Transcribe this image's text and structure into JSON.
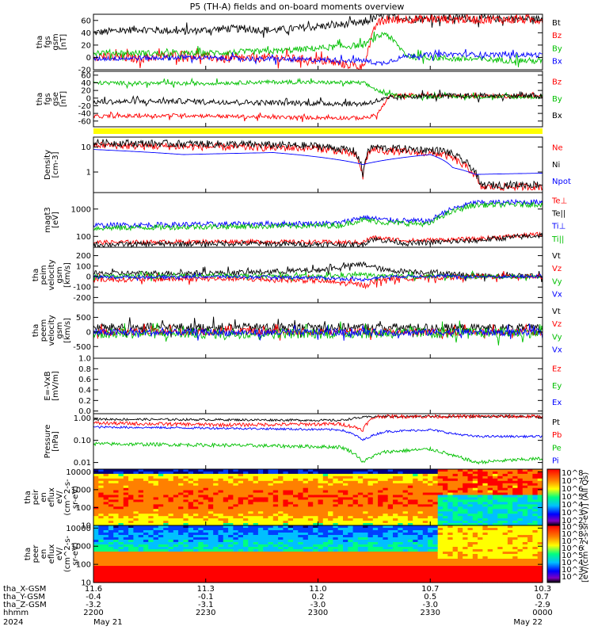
{
  "title": "P5 (TH-A) fields and on-board moments overview",
  "chart_data": [
    {
      "id": "fgs_gsm",
      "type": "line",
      "ylabel": [
        "tha",
        "fgs",
        "gsm",
        "[nT]"
      ],
      "ylim": [
        -20,
        70
      ],
      "yticks": [
        {
          "v": 60,
          "t": "60"
        },
        {
          "v": 40,
          "t": "40"
        },
        {
          "v": 20,
          "t": "20"
        },
        {
          "v": 0,
          "t": "0"
        },
        {
          "v": -20,
          "t": "-20"
        }
      ],
      "series": [
        {
          "name": "Bt",
          "color": "#000000",
          "x": [
            0,
            0.1,
            0.2,
            0.3,
            0.4,
            0.5,
            0.6,
            0.65,
            0.7,
            0.8,
            0.9,
            1
          ],
          "y": [
            40,
            46,
            42,
            47,
            44,
            50,
            56,
            70,
            62,
            64,
            63,
            62
          ],
          "noise": 6
        },
        {
          "name": "Bz",
          "color": "#ff0000",
          "x": [
            0,
            0.1,
            0.2,
            0.3,
            0.4,
            0.5,
            0.6,
            0.63,
            0.65,
            0.7,
            0.8,
            1
          ],
          "y": [
            2,
            -2,
            5,
            -3,
            0,
            -5,
            -15,
            55,
            60,
            62,
            62,
            61
          ],
          "noise": 7
        },
        {
          "name": "By",
          "color": "#00c000",
          "x": [
            0,
            0.2,
            0.4,
            0.6,
            0.65,
            0.7,
            0.8,
            0.9,
            1
          ],
          "y": [
            8,
            6,
            10,
            20,
            40,
            2,
            -2,
            -4,
            -6
          ],
          "noise": 5
        },
        {
          "name": "Bx",
          "color": "#0000ff",
          "x": [
            0,
            0.2,
            0.4,
            0.6,
            0.64,
            0.7,
            0.8,
            1
          ],
          "y": [
            -2,
            0,
            -3,
            -5,
            -10,
            3,
            5,
            4
          ],
          "noise": 4
        }
      ]
    },
    {
      "id": "fgs_gse",
      "type": "line",
      "ylabel": [
        "tha",
        "fgs",
        "gse",
        "[nT]"
      ],
      "ylim": [
        -75,
        70
      ],
      "yticks": [
        {
          "v": 60,
          "t": "60"
        },
        {
          "v": 40,
          "t": "40"
        },
        {
          "v": 20,
          "t": "20"
        },
        {
          "v": 0,
          "t": "0"
        },
        {
          "v": -20,
          "t": "-20"
        },
        {
          "v": -40,
          "t": "-40"
        },
        {
          "v": -60,
          "t": "-60"
        }
      ],
      "series": [
        {
          "name": "Bz",
          "color": "#ff0000",
          "x": [
            0,
            0.2,
            0.4,
            0.6,
            0.63,
            0.66,
            0.7,
            0.8,
            1
          ],
          "y": [
            -48,
            -45,
            -50,
            -52,
            -45,
            5,
            8,
            6,
            5
          ],
          "noise": 5
        },
        {
          "name": "By",
          "color": "#00c000",
          "x": [
            0,
            0.2,
            0.4,
            0.6,
            0.65,
            0.7,
            0.8,
            1
          ],
          "y": [
            40,
            38,
            42,
            40,
            10,
            5,
            4,
            3
          ],
          "noise": 5
        },
        {
          "name": "Bx",
          "color": "#000000",
          "x": [
            0,
            0.2,
            0.4,
            0.6,
            0.64,
            0.7,
            0.8,
            1
          ],
          "y": [
            -10,
            -8,
            -12,
            -15,
            -5,
            5,
            6,
            6
          ],
          "noise": 7
        }
      ]
    },
    {
      "id": "density",
      "type": "line",
      "log": true,
      "ylabel": [
        "Density",
        "[cm-3]"
      ],
      "ylim": [
        0.15,
        25
      ],
      "yticks": [
        {
          "v": 10,
          "t": "10"
        },
        {
          "v": 1,
          "t": "1"
        }
      ],
      "series": [
        {
          "name": "Ne",
          "color": "#ff0000",
          "x": [
            0,
            0.1,
            0.3,
            0.5,
            0.58,
            0.6,
            0.62,
            0.65,
            0.72,
            0.78,
            0.82,
            0.86,
            0.9,
            1
          ],
          "y": [
            12,
            11,
            10,
            9,
            5,
            0.5,
            8,
            7,
            6,
            5,
            2,
            0.25,
            0.25,
            0.26
          ],
          "noise": 0.15
        },
        {
          "name": "Ni",
          "color": "#000000",
          "x": [
            0,
            0.1,
            0.3,
            0.5,
            0.58,
            0.6,
            0.62,
            0.65,
            0.72,
            0.78,
            0.82,
            0.86,
            0.9,
            1
          ],
          "y": [
            15,
            14,
            13,
            11,
            7,
            0.6,
            10,
            9,
            8,
            7,
            3,
            0.3,
            0.3,
            0.32
          ],
          "noise": 0.15
        },
        {
          "name": "Npot",
          "color": "#0000ff",
          "x": [
            0,
            0.2,
            0.4,
            0.55,
            0.6,
            0.7,
            0.75,
            0.8,
            0.85,
            1
          ],
          "y": [
            8,
            5,
            6,
            3,
            2,
            4,
            5,
            1.5,
            0.8,
            0.9
          ],
          "noise": 0
        }
      ]
    },
    {
      "id": "temp",
      "type": "line",
      "log": true,
      "ylabel": [
        "magt3",
        "[eV]"
      ],
      "ylim": [
        40,
        4000
      ],
      "yticks": [
        {
          "v": 1000,
          "t": "1000"
        },
        {
          "v": 100,
          "t": "100"
        }
      ],
      "series": [
        {
          "name": "Te⊥",
          "color": "#ff0000",
          "x": [
            0,
            0.3,
            0.6,
            0.62,
            0.7,
            0.85,
            1
          ],
          "y": [
            60,
            65,
            60,
            90,
            70,
            80,
            120
          ],
          "noise": 0.08
        },
        {
          "name": "Te||",
          "color": "#000000",
          "x": [
            0,
            0.3,
            0.6,
            0.62,
            0.7,
            0.85,
            1
          ],
          "y": [
            50,
            55,
            50,
            80,
            55,
            70,
            110
          ],
          "noise": 0.1
        },
        {
          "name": "Ti⊥",
          "color": "#0000ff",
          "x": [
            0,
            0.3,
            0.55,
            0.6,
            0.65,
            0.75,
            0.8,
            0.85,
            1
          ],
          "y": [
            250,
            280,
            300,
            500,
            400,
            350,
            1000,
            1700,
            1800
          ],
          "noise": 0.1
        },
        {
          "name": "Ti||",
          "color": "#00c000",
          "x": [
            0,
            0.3,
            0.55,
            0.6,
            0.65,
            0.75,
            0.8,
            0.85,
            1
          ],
          "y": [
            200,
            230,
            250,
            400,
            320,
            280,
            800,
            1400,
            1500
          ],
          "noise": 0.1
        }
      ]
    },
    {
      "id": "peim",
      "type": "line",
      "ylabel": [
        "tha",
        "peim",
        "velocity",
        "gsm",
        "[km/s]"
      ],
      "ylim": [
        -250,
        280
      ],
      "yticks": [
        {
          "v": 200,
          "t": "200"
        },
        {
          "v": 100,
          "t": "100"
        },
        {
          "v": 0,
          "t": "0"
        },
        {
          "v": -100,
          "t": "-100"
        },
        {
          "v": -200,
          "t": "-200"
        }
      ],
      "series": [
        {
          "name": "Vt",
          "color": "#000000",
          "x": [
            0,
            0.3,
            0.5,
            0.6,
            0.65,
            0.75,
            0.85,
            1
          ],
          "y": [
            30,
            35,
            60,
            120,
            60,
            40,
            10,
            10
          ],
          "noise": 25
        },
        {
          "name": "Vz",
          "color": "#ff0000",
          "x": [
            0,
            0.3,
            0.5,
            0.6,
            0.65,
            0.75,
            0.85,
            1
          ],
          "y": [
            -30,
            -20,
            -40,
            -80,
            -20,
            -10,
            0,
            0
          ],
          "noise": 25
        },
        {
          "name": "Vy",
          "color": "#00c000",
          "x": [
            0,
            0.3,
            0.5,
            0.6,
            0.65,
            0.75,
            0.85,
            1
          ],
          "y": [
            0,
            10,
            0,
            20,
            0,
            5,
            0,
            0
          ],
          "noise": 20
        },
        {
          "name": "Vx",
          "color": "#0000ff",
          "x": [
            0,
            0.3,
            0.5,
            0.6,
            0.65,
            0.75,
            0.85,
            1
          ],
          "y": [
            -5,
            0,
            -10,
            -30,
            0,
            5,
            0,
            0
          ],
          "noise": 15
        }
      ]
    },
    {
      "id": "peem",
      "type": "line",
      "ylabel": [
        "tha",
        "peem",
        "velocity",
        "gsm",
        "[km/s]"
      ],
      "ylim": [
        -900,
        1000
      ],
      "yticks": [
        {
          "v": 500,
          "t": "500"
        },
        {
          "v": 0,
          "t": "0"
        },
        {
          "v": -500,
          "t": "-500"
        }
      ],
      "series": [
        {
          "name": "Vt",
          "color": "#000000",
          "x": [
            0,
            0.5,
            1
          ],
          "y": [
            150,
            160,
            120
          ],
          "noise": 150
        },
        {
          "name": "Vz",
          "color": "#ff0000",
          "x": [
            0,
            0.5,
            1
          ],
          "y": [
            0,
            0,
            0
          ],
          "noise": 120
        },
        {
          "name": "Vy",
          "color": "#00c000",
          "x": [
            0,
            0.5,
            1
          ],
          "y": [
            -50,
            -50,
            -20
          ],
          "noise": 180
        },
        {
          "name": "Vx",
          "color": "#0000ff",
          "x": [
            0,
            0.5,
            1
          ],
          "y": [
            -20,
            -20,
            -10
          ],
          "noise": 120
        }
      ]
    },
    {
      "id": "efield",
      "type": "line",
      "ylabel": [
        "E=-VxB",
        "[mV/m]"
      ],
      "ylim": [
        -0.05,
        1.0
      ],
      "yticks": [
        {
          "v": 1.0,
          "t": "1.0"
        },
        {
          "v": 0.8,
          "t": "0.8"
        },
        {
          "v": 0.6,
          "t": "0.6"
        },
        {
          "v": 0.4,
          "t": "0.4"
        },
        {
          "v": 0.2,
          "t": "0.2"
        },
        {
          "v": 0.0,
          "t": "0.0"
        }
      ],
      "series": [
        {
          "name": "Ez",
          "color": "#ff0000",
          "x": [],
          "y": []
        },
        {
          "name": "Ey",
          "color": "#00c000",
          "x": [],
          "y": []
        },
        {
          "name": "Ex",
          "color": "#0000ff",
          "x": [],
          "y": []
        }
      ]
    },
    {
      "id": "pressure",
      "type": "line",
      "log": true,
      "ylabel": [
        "Pressure",
        "[nPa]"
      ],
      "ylim": [
        0.005,
        1.6
      ],
      "yticks": [
        {
          "v": 1,
          "t": "1.00"
        },
        {
          "v": 0.1,
          "t": "0.10"
        },
        {
          "v": 0.01,
          "t": "0.01"
        }
      ],
      "series": [
        {
          "name": "Pt",
          "color": "#000000",
          "x": [
            0,
            0.3,
            0.55,
            0.6,
            0.63,
            0.7,
            1
          ],
          "y": [
            0.9,
            0.85,
            0.8,
            1.1,
            1.2,
            1.2,
            1.2
          ],
          "noise": 0.05
        },
        {
          "name": "Pb",
          "color": "#ff0000",
          "x": [
            0,
            0.3,
            0.55,
            0.6,
            0.63,
            0.7,
            1
          ],
          "y": [
            0.6,
            0.5,
            0.55,
            0.3,
            1.2,
            1.2,
            1.2
          ],
          "noise": 0.08
        },
        {
          "name": "Pe",
          "color": "#00c000",
          "x": [
            0,
            0.3,
            0.55,
            0.6,
            0.65,
            0.75,
            0.8,
            0.85,
            1
          ],
          "y": [
            0.07,
            0.06,
            0.05,
            0.01,
            0.03,
            0.04,
            0.02,
            0.01,
            0.015
          ],
          "noise": 0.08
        },
        {
          "name": "Pi",
          "color": "#0000ff",
          "x": [
            0,
            0.3,
            0.55,
            0.6,
            0.65,
            0.75,
            0.8,
            0.85,
            1
          ],
          "y": [
            0.4,
            0.35,
            0.3,
            0.1,
            0.25,
            0.3,
            0.2,
            0.15,
            0.15
          ],
          "noise": 0.05
        }
      ]
    },
    {
      "id": "peir_spec",
      "type": "heatmap",
      "ylabel": [
        "tha",
        "peir",
        "en",
        "eflux",
        "eV/",
        "(cm^2-s-",
        "sr-eV)"
      ],
      "yticks": [
        {
          "v": 10000,
          "t": "10000"
        },
        {
          "v": 1000,
          "t": "1000"
        },
        {
          "v": 100,
          "t": "100"
        },
        {
          "v": 10,
          "t": "10"
        }
      ]
    },
    {
      "id": "peer_spec",
      "type": "heatmap",
      "ylabel": [
        "tha",
        "peer",
        "en",
        "eflux",
        "eV/",
        "(cm^2-s-",
        "sr-eV)"
      ],
      "yticks": [
        {
          "v": 10000,
          "t": "10000"
        },
        {
          "v": 1000,
          "t": "1000"
        },
        {
          "v": 100,
          "t": "100"
        },
        {
          "v": 10,
          "t": "10"
        }
      ]
    }
  ],
  "colorbar": {
    "label": "[eV/(cm^2-s-sr-eV)] (All Qs)",
    "upper_ticks": [
      "10^8",
      "10^7",
      "10^6",
      "10^5",
      "10^4",
      "10^3",
      "10^2"
    ],
    "lower_ticks": [
      "10^9",
      "10^8",
      "10^7",
      "10^6",
      "10^5",
      "10^4",
      "10^3",
      "10^2"
    ]
  },
  "x_axis": {
    "rows": [
      {
        "label": "tha_X-GSM",
        "values": [
          "11.6",
          "11.3",
          "11.0",
          "10.7",
          "10.3"
        ]
      },
      {
        "label": "tha_Y-GSM",
        "values": [
          "-0.4",
          "-0.1",
          "0.2",
          "0.5",
          "0.7"
        ]
      },
      {
        "label": "tha_Z-GSM",
        "values": [
          "-3.2",
          "-3.1",
          "-3.0",
          "-3.0",
          "-2.9"
        ]
      },
      {
        "label": "hhmm",
        "values": [
          "2200",
          "2230",
          "2300",
          "2330",
          "0000"
        ]
      }
    ],
    "year": "2024",
    "start_date": "May 21",
    "end_date": "May 22"
  }
}
